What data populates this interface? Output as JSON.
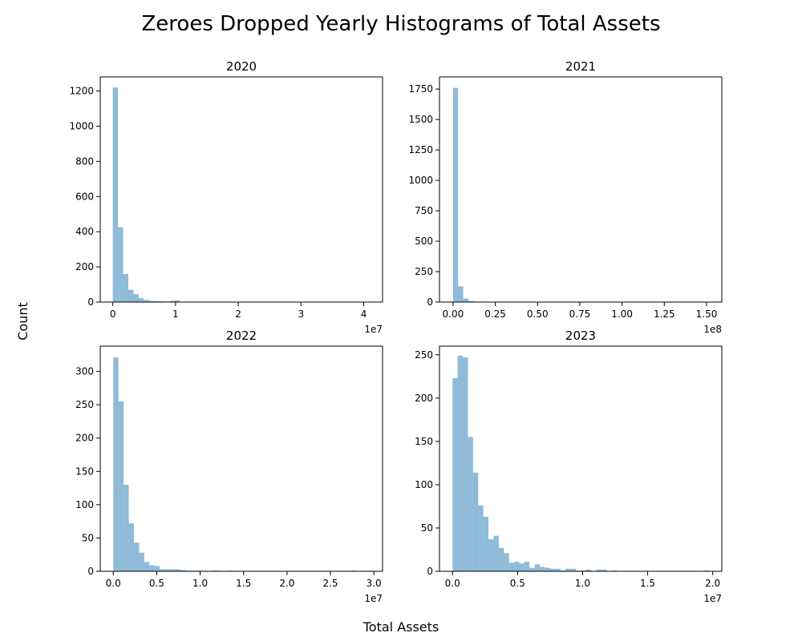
{
  "figure": {
    "title": "Zeroes Dropped Yearly Histograms of Total Assets",
    "xlabel": "Total Assets",
    "ylabel": "Count",
    "bar_color": "#1f77b4",
    "bar_opacity": 0.5
  },
  "chart_data": [
    {
      "type": "bar",
      "title": "2020",
      "x_offset_label": "1e7",
      "xlim": [
        -0.2,
        4.3
      ],
      "ylim": [
        0,
        1280
      ],
      "xticks": [
        0,
        1,
        2,
        3,
        4
      ],
      "xtick_labels": [
        "0",
        "1",
        "2",
        "3",
        "4"
      ],
      "yticks": [
        0,
        200,
        400,
        600,
        800,
        1000,
        1200
      ],
      "bin_start": 0.0,
      "bin_width": 0.0825,
      "values": [
        1220,
        425,
        160,
        70,
        45,
        22,
        12,
        7,
        6,
        5,
        3,
        7,
        10,
        2,
        1,
        1,
        1,
        0,
        0,
        0,
        0,
        0,
        0,
        0,
        0,
        0,
        0,
        0,
        0,
        0,
        0,
        0,
        0,
        0,
        0,
        0,
        0,
        0,
        0,
        0,
        0,
        0,
        0,
        0,
        0,
        0,
        0,
        0,
        0,
        1
      ]
    },
    {
      "type": "bar",
      "title": "2021",
      "x_offset_label": "1e8",
      "xlim": [
        -0.08,
        1.59
      ],
      "ylim": [
        0,
        1850
      ],
      "xticks": [
        0,
        0.25,
        0.5,
        0.75,
        1.0,
        1.25,
        1.5
      ],
      "xtick_labels": [
        "0.00",
        "0.25",
        "0.50",
        "0.75",
        "1.00",
        "1.25",
        "1.50"
      ],
      "yticks": [
        0,
        250,
        500,
        750,
        1000,
        1250,
        1500,
        1750
      ],
      "bin_start": 0.0,
      "bin_width": 0.0302,
      "values": [
        1760,
        130,
        30,
        10,
        4,
        2,
        1,
        1,
        0,
        0,
        0,
        0,
        0,
        0,
        0,
        0,
        0,
        0,
        0,
        0,
        0,
        0,
        0,
        0,
        0,
        0,
        0,
        0,
        0,
        0,
        0,
        0,
        0,
        0,
        0,
        0,
        0,
        0,
        0,
        0,
        0,
        0,
        0,
        0,
        0,
        0,
        0,
        0,
        0,
        1
      ]
    },
    {
      "type": "bar",
      "title": "2022",
      "x_offset_label": "1e7",
      "xlim": [
        -0.15,
        3.1
      ],
      "ylim": [
        0,
        338
      ],
      "xticks": [
        0,
        0.5,
        1.0,
        1.5,
        2.0,
        2.5,
        3.0
      ],
      "xtick_labels": [
        "0.0",
        "0.5",
        "1.0",
        "1.5",
        "2.0",
        "2.5",
        "3.0"
      ],
      "yticks": [
        0,
        50,
        100,
        150,
        200,
        250,
        300
      ],
      "bin_start": 0.0,
      "bin_width": 0.0595,
      "values": [
        321,
        255,
        130,
        72,
        43,
        28,
        14,
        9,
        8,
        3,
        3,
        3,
        3,
        2,
        1,
        1,
        1,
        0,
        0,
        1,
        1,
        0,
        1,
        0,
        0,
        0,
        0,
        0,
        0,
        0,
        0,
        0,
        0,
        0,
        0,
        0,
        0,
        0,
        0,
        0,
        0,
        0,
        0,
        0,
        0,
        0,
        1,
        0,
        0,
        1
      ]
    },
    {
      "type": "bar",
      "title": "2023",
      "x_offset_label": "1e7",
      "xlim": [
        -0.1,
        2.07
      ],
      "ylim": [
        0,
        260
      ],
      "xticks": [
        0,
        0.5,
        1.0,
        1.5,
        2.0
      ],
      "xtick_labels": [
        "0.0",
        "0.5",
        "1.0",
        "1.5",
        "2.0"
      ],
      "yticks": [
        0,
        50,
        100,
        150,
        200,
        250
      ],
      "bin_start": 0.0,
      "bin_width": 0.0395,
      "values": [
        223,
        249,
        247,
        155,
        114,
        76,
        63,
        37,
        41,
        27,
        21,
        10,
        11,
        9,
        11,
        4,
        8,
        5,
        4,
        3,
        3,
        1,
        3,
        3,
        1,
        1,
        2,
        0,
        2,
        2,
        0,
        1,
        0,
        0,
        0,
        0,
        0,
        0,
        0,
        0,
        0,
        0,
        0,
        0,
        0,
        0,
        0,
        0,
        0,
        1
      ]
    }
  ]
}
